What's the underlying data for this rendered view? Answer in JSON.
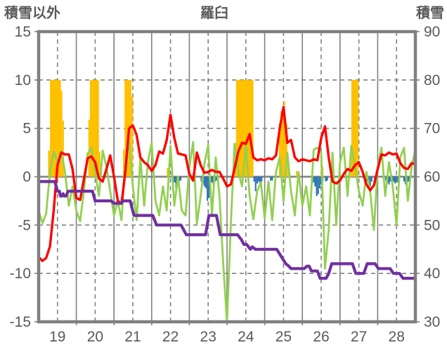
{
  "header": {
    "left_label": "積雪以外",
    "title": "羅臼",
    "right_label": "積雪"
  },
  "chart_data": {
    "type": "bar+line combo (weather chart)",
    "title": "羅臼",
    "x_axis": {
      "tick_labels": [
        19,
        20,
        21,
        22,
        23,
        24,
        25,
        26,
        27,
        28
      ],
      "range": [
        18.5,
        28.5
      ],
      "dashed_gridlines_at": [
        19,
        20,
        21,
        22,
        23,
        24,
        25,
        26,
        27,
        28
      ],
      "solid_gridlines_at": [
        19.5,
        20.5,
        21.5,
        22.5,
        23.5,
        24.5,
        25.5,
        26.5,
        27.5
      ]
    },
    "left_axis": {
      "label": "積雪以外",
      "range": [
        -15,
        15
      ],
      "ticks": [
        15,
        10,
        5,
        0,
        -5,
        -10,
        -15
      ],
      "dashed_hgrid_at": [
        10,
        5,
        -5,
        -10
      ],
      "zero_line": 0
    },
    "right_axis": {
      "label": "積雪",
      "range": [
        30,
        90
      ],
      "ticks": [
        90,
        80,
        70,
        60,
        50,
        40,
        30
      ]
    },
    "style": {
      "grid_color": "#808080",
      "text_color": "#595959",
      "background": "#ffffff"
    },
    "series": {
      "orange_bars": {
        "name": "sunshine-bars",
        "axis": "left",
        "color": "#FFC000",
        "segments_from_to_height": [
          [
            18.75,
            18.8,
            2.7
          ],
          [
            18.8,
            19.09,
            10
          ],
          [
            19.09,
            19.13,
            8.9
          ],
          [
            19.13,
            19.17,
            5.8
          ],
          [
            19.82,
            19.86,
            5.9
          ],
          [
            19.86,
            20.1,
            10
          ],
          [
            20.1,
            20.14,
            2.6
          ],
          [
            20.74,
            20.78,
            2.8
          ],
          [
            20.78,
            20.96,
            10
          ],
          [
            20.96,
            21.0,
            8.3
          ],
          [
            21.9,
            21.94,
            0.9
          ],
          [
            23.7,
            23.74,
            3.5
          ],
          [
            23.74,
            24.2,
            10
          ],
          [
            24.88,
            24.92,
            5.5
          ],
          [
            24.92,
            25.0,
            6.8
          ],
          [
            25.0,
            25.04,
            7.8
          ],
          [
            25.04,
            25.1,
            5.5
          ],
          [
            25.1,
            25.16,
            1.3
          ],
          [
            25.33,
            25.37,
            0.6
          ],
          [
            26.02,
            26.06,
            1.0
          ],
          [
            26.76,
            26.8,
            2.5
          ],
          [
            26.8,
            26.99,
            10
          ]
        ]
      },
      "blue_bars": {
        "name": "precipitation-bars",
        "axis": "left",
        "color": "#2E75B6",
        "bar_width_days": 0.04,
        "bars_t_value": [
          [
            22.07,
            -0.5
          ],
          [
            22.11,
            -0.6
          ],
          [
            22.15,
            -1.3
          ],
          [
            22.19,
            -0.6
          ],
          [
            22.23,
            -0.5
          ],
          [
            22.27,
            -0.4
          ],
          [
            22.82,
            -0.5
          ],
          [
            22.86,
            -0.7
          ],
          [
            22.9,
            -1.0
          ],
          [
            22.94,
            -1.2
          ],
          [
            22.98,
            -2.5
          ],
          [
            23.02,
            -2.2
          ],
          [
            23.06,
            -1.0
          ],
          [
            23.1,
            -0.6
          ],
          [
            23.14,
            -0.8
          ],
          [
            23.18,
            -0.5
          ],
          [
            23.22,
            -0.4
          ],
          [
            23.26,
            -0.6
          ],
          [
            24.22,
            -0.5
          ],
          [
            24.26,
            -1.5
          ],
          [
            24.3,
            -0.7
          ],
          [
            24.34,
            -0.5
          ],
          [
            24.38,
            -0.9
          ],
          [
            24.42,
            -0.5
          ],
          [
            24.66,
            -0.4
          ],
          [
            24.7,
            -0.4
          ],
          [
            25.8,
            -0.6
          ],
          [
            25.84,
            -1.0
          ],
          [
            25.88,
            -2.0
          ],
          [
            25.92,
            -1.8
          ],
          [
            25.96,
            -1.2
          ],
          [
            26.0,
            -0.8
          ],
          [
            26.04,
            -0.5
          ],
          [
            26.12,
            -0.5
          ],
          [
            26.16,
            -0.4
          ],
          [
            27.22,
            -0.5
          ],
          [
            27.26,
            -0.4
          ],
          [
            27.3,
            -1.0
          ],
          [
            27.34,
            -0.5
          ],
          [
            27.42,
            -0.4
          ],
          [
            27.72,
            -0.4
          ],
          [
            27.76,
            -0.6
          ],
          [
            27.8,
            -0.8
          ],
          [
            27.84,
            -0.5
          ],
          [
            27.88,
            -0.6
          ],
          [
            27.92,
            -0.5
          ],
          [
            27.96,
            -0.7
          ],
          [
            28.0,
            -0.5
          ],
          [
            28.04,
            -0.6
          ],
          [
            28.2,
            -0.5
          ],
          [
            28.24,
            -0.8
          ],
          [
            28.28,
            -0.6
          ],
          [
            28.32,
            -0.5
          ]
        ]
      },
      "green_line": {
        "name": "green-line",
        "axis": "left",
        "color": "#92D050",
        "x_start": 18.5,
        "x_step": 0.1,
        "values": [
          -3.5,
          -4.8,
          -3.8,
          0.5,
          2.6,
          1.5,
          2.7,
          0.5,
          -3.0,
          -1.0,
          -3.5,
          -4.6,
          -1.5,
          2.4,
          3.0,
          0.5,
          -2.0,
          2.7,
          1.0,
          -1.5,
          -4.0,
          -2.5,
          -4.5,
          1.5,
          3.6,
          -1.0,
          -4.5,
          2.0,
          -3.0,
          1.5,
          3.5,
          -2.5,
          -4.0,
          -1.0,
          -3.5,
          3.2,
          -3.0,
          0.0,
          -3.5,
          -4.0,
          1.0,
          3.6,
          -4.9,
          -2.0,
          1.3,
          3.3,
          -4.0,
          2.0,
          -2.0,
          -9.0,
          -15.0,
          -5.0,
          3.4,
          0.5,
          -1.0,
          3.3,
          -2.0,
          -4.4,
          -1.5,
          -0.6,
          -4.3,
          -0.5,
          -4.5,
          0.5,
          2.0,
          -2.5,
          2.5,
          -1.5,
          -4.0,
          0.5,
          -3.0,
          -1.0,
          -4.0,
          2.8,
          3.0,
          2.5,
          -9.5,
          -5.5,
          2.5,
          -5.0,
          1.5,
          3.0,
          -2.0,
          3.2,
          1.0,
          -1.5,
          -3.0,
          0.5,
          -1.5,
          -5.5,
          1.0,
          3.0,
          -2.0,
          1.5,
          -1.0,
          -5.0,
          2.0,
          3.0,
          -2.5,
          1.0,
          2.8
        ]
      },
      "red_line": {
        "name": "temperature-line",
        "axis": "left",
        "color": "#FF0000",
        "x_start": 18.5,
        "x_step": 0.1,
        "values": [
          -8.3,
          -8.7,
          -8.4,
          -7.2,
          -3.5,
          1.2,
          2.5,
          2.3,
          2.3,
          0.8,
          -2.2,
          -2.4,
          -0.3,
          1.9,
          2.1,
          1.5,
          -0.2,
          -0.5,
          0.8,
          2.2,
          0.0,
          -2.5,
          -2.8,
          0.5,
          5.0,
          5.3,
          4.3,
          2.0,
          1.5,
          1.2,
          0.6,
          1.2,
          2.6,
          2.4,
          3.8,
          6.4,
          4.0,
          2.4,
          2.3,
          2.2,
          0.3,
          -0.4,
          2.5,
          1.2,
          0.4,
          0.5,
          0.7,
          0.5,
          0.5,
          -0.2,
          -1.0,
          -0.8,
          0.8,
          2.6,
          3.5,
          3.4,
          4.4,
          2.0,
          1.7,
          1.8,
          1.7,
          1.9,
          1.8,
          2.2,
          5.0,
          7.2,
          3.5,
          3.8,
          2.0,
          1.6,
          1.8,
          1.7,
          1.6,
          1.8,
          1.7,
          4.0,
          5.2,
          2.0,
          -0.5,
          -0.7,
          -0.4,
          0.3,
          0.8,
          0.6,
          1.2,
          1.5,
          0.5,
          -0.8,
          -1.4,
          -0.9,
          0.8,
          2.3,
          2.2,
          2.5,
          2.3,
          2.4,
          1.4,
          0.9,
          0.8,
          1.4,
          1.3
        ]
      },
      "purple_line": {
        "name": "snow-depth-line",
        "axis": "right",
        "color": "#7030A0",
        "points_t_value": [
          [
            18.5,
            59
          ],
          [
            18.93,
            59
          ],
          [
            19.0,
            57
          ],
          [
            19.05,
            57
          ],
          [
            19.08,
            56
          ],
          [
            19.12,
            56
          ],
          [
            19.15,
            56.5
          ],
          [
            19.18,
            56
          ],
          [
            19.23,
            56
          ],
          [
            19.28,
            57
          ],
          [
            19.93,
            57
          ],
          [
            20.0,
            55
          ],
          [
            20.42,
            55
          ],
          [
            20.5,
            54.5
          ],
          [
            20.68,
            54.5
          ],
          [
            20.74,
            55
          ],
          [
            20.93,
            55
          ],
          [
            21.03,
            52
          ],
          [
            21.53,
            52
          ],
          [
            21.63,
            50
          ],
          [
            22.28,
            50
          ],
          [
            22.42,
            48
          ],
          [
            22.93,
            48
          ],
          [
            23.02,
            52
          ],
          [
            23.22,
            52
          ],
          [
            23.32,
            48
          ],
          [
            23.78,
            48
          ],
          [
            23.88,
            47
          ],
          [
            23.95,
            46
          ],
          [
            24.02,
            46
          ],
          [
            24.07,
            45.5
          ],
          [
            24.12,
            45
          ],
          [
            24.17,
            45.5
          ],
          [
            24.25,
            45
          ],
          [
            24.82,
            45
          ],
          [
            24.9,
            44
          ],
          [
            24.98,
            43
          ],
          [
            25.06,
            42
          ],
          [
            25.14,
            41.5
          ],
          [
            25.2,
            41
          ],
          [
            25.55,
            41
          ],
          [
            25.62,
            41.5
          ],
          [
            25.68,
            41.5
          ],
          [
            25.74,
            40.5
          ],
          [
            25.9,
            40.5
          ],
          [
            25.97,
            39
          ],
          [
            26.13,
            39
          ],
          [
            26.2,
            40
          ],
          [
            26.28,
            42
          ],
          [
            26.83,
            42
          ],
          [
            26.92,
            40
          ],
          [
            27.13,
            40
          ],
          [
            27.22,
            42
          ],
          [
            27.43,
            42
          ],
          [
            27.52,
            41
          ],
          [
            27.83,
            41
          ],
          [
            27.92,
            40
          ],
          [
            28.08,
            40
          ],
          [
            28.17,
            39
          ],
          [
            28.5,
            39
          ]
        ]
      }
    }
  }
}
